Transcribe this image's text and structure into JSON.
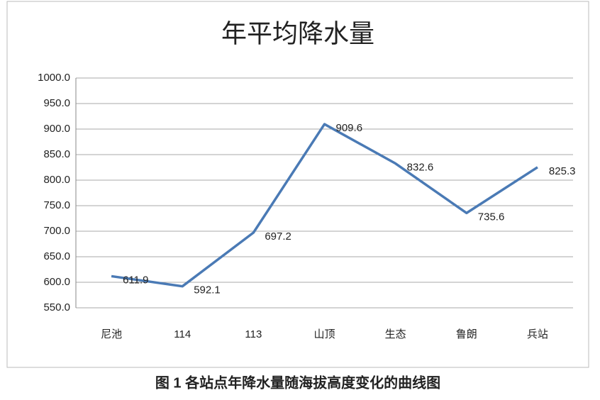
{
  "chart_data": {
    "type": "line",
    "title": "年平均降水量",
    "categories": [
      "尼池",
      "114",
      "113",
      "山顶",
      "生态",
      "鲁朗",
      "兵站"
    ],
    "values": [
      611.9,
      592.1,
      697.2,
      909.6,
      832.6,
      735.6,
      825.3
    ],
    "color": "#4a7ab5",
    "ylim": [
      550,
      1000
    ],
    "yticks": [
      {
        "value": 550,
        "label": "550.0"
      },
      {
        "value": 600,
        "label": "600.0"
      },
      {
        "value": 650,
        "label": "650.0"
      },
      {
        "value": 700,
        "label": "700.0"
      },
      {
        "value": 750,
        "label": "750.0"
      },
      {
        "value": 800,
        "label": "800.0"
      },
      {
        "value": 850,
        "label": "850.0"
      },
      {
        "value": 900,
        "label": "900.0"
      },
      {
        "value": 950,
        "label": "950.0"
      },
      {
        "value": 1000,
        "label": "1000.0"
      }
    ],
    "grid": true,
    "caption": "图 1 各站点年降水量随海拔高度变化的曲线图"
  }
}
